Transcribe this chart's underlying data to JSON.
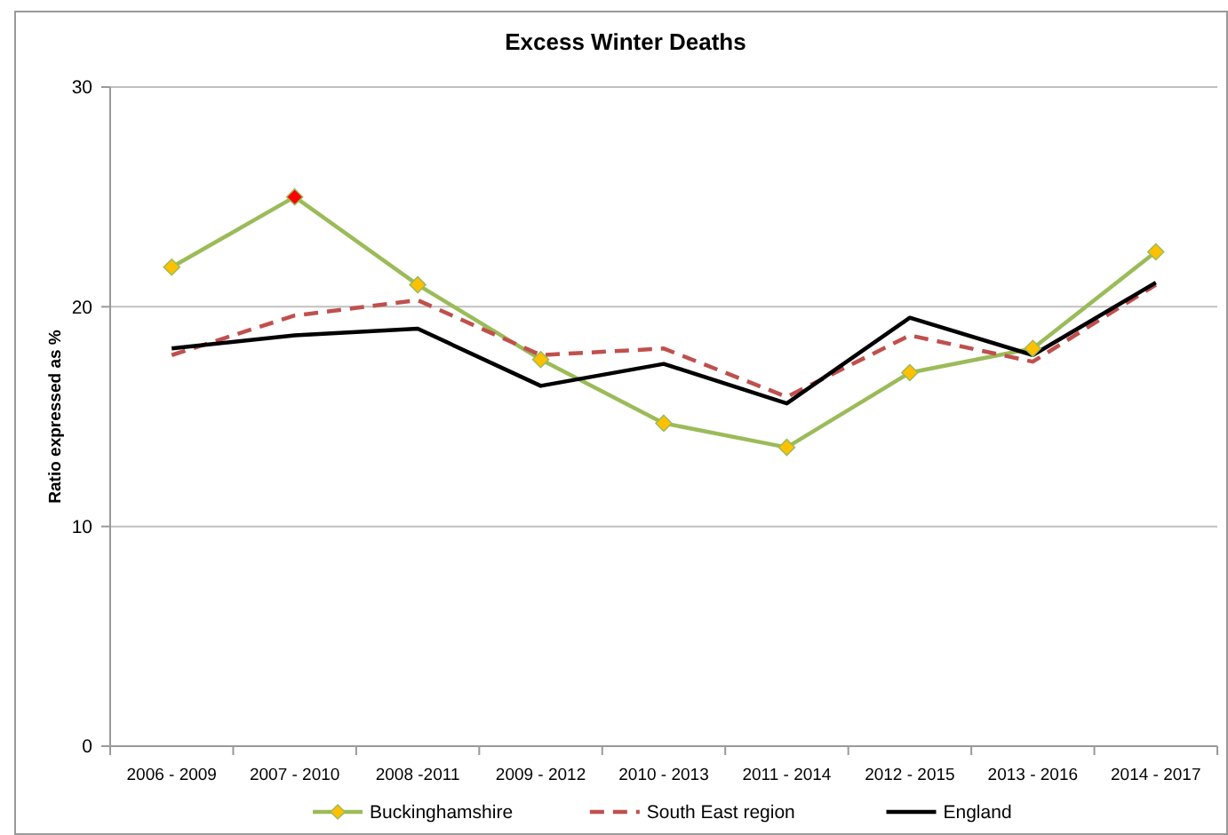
{
  "chart_data": {
    "type": "line",
    "title": "Excess Winter Deaths",
    "ylabel": "Ratio expressed as %",
    "categories": [
      "2006 - 2009",
      "2007 - 2010",
      "2008 -2011",
      "2009 - 2012",
      "2010 - 2013",
      "2011 - 2014",
      "2012 - 2015",
      "2013 - 2016",
      "2014 - 2017"
    ],
    "ylim": [
      0,
      30
    ],
    "yticks": [
      0,
      10,
      20,
      30
    ],
    "grid": "y",
    "legend": "bottom",
    "series": [
      {
        "name": "Buckinghamshire",
        "color": "#9bbb59",
        "line_style": "solid",
        "marker": "diamond",
        "colors": [
          "#ffc000",
          "#ff0000",
          "#ffc000",
          "#ffc000",
          "#ffc000",
          "#ffc000",
          "#ffc000",
          "#ffc000",
          "#ffc000"
        ],
        "values": [
          21.8,
          25.0,
          21.0,
          17.6,
          14.7,
          13.6,
          17.0,
          18.1,
          22.5
        ]
      },
      {
        "name": "South East region",
        "color": "#c0504d",
        "line_style": "dashed",
        "values": [
          17.8,
          19.6,
          20.3,
          17.8,
          18.1,
          15.9,
          18.7,
          17.5,
          21.0
        ]
      },
      {
        "name": "England",
        "color": "#000000",
        "line_style": "solid",
        "values": [
          18.1,
          18.7,
          19.0,
          16.4,
          17.4,
          15.6,
          19.5,
          17.8,
          21.1
        ]
      }
    ]
  }
}
